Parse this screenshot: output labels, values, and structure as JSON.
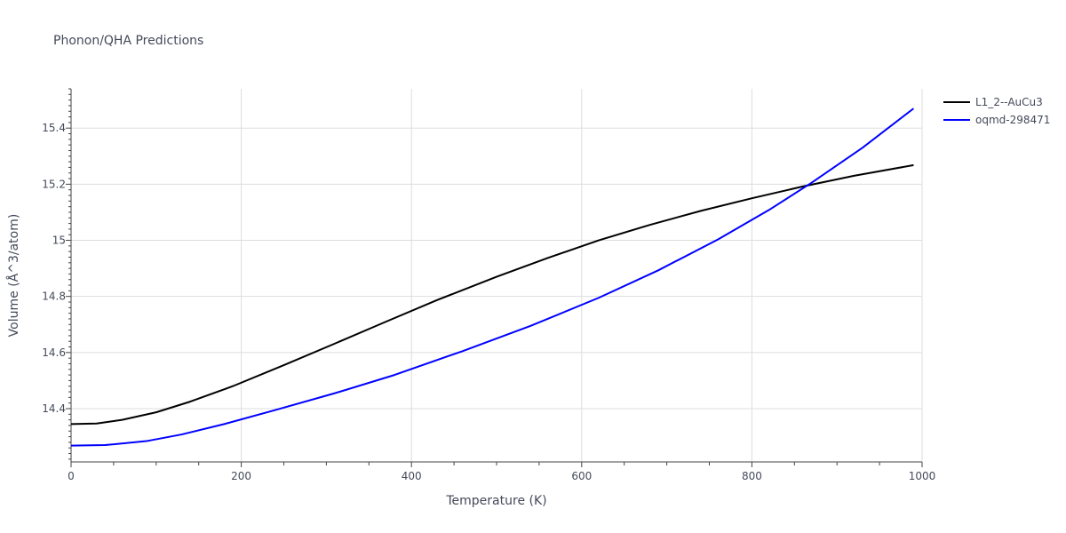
{
  "chart_data": {
    "type": "line",
    "title": "Phonon/QHA Predictions",
    "xlabel": "Temperature (K)",
    "ylabel": "Volume (Å^3/atom)",
    "xlim": [
      0,
      1000
    ],
    "ylim": [
      14.21,
      15.54
    ],
    "x_ticks": [
      0,
      200,
      400,
      600,
      800,
      1000
    ],
    "y_ticks": [
      14.4,
      14.6,
      14.8,
      15,
      15.2,
      15.4
    ],
    "x_tick_labels": [
      "0",
      "200",
      "400",
      "600",
      "800",
      "1000"
    ],
    "y_tick_labels": [
      "14.4",
      "14.6",
      "14.8",
      "15",
      "15.2",
      "15.4"
    ],
    "grid": true,
    "legend_position": "top-right",
    "series": [
      {
        "name": "L1_2--AuCu3",
        "color": "#000000",
        "x": [
          0,
          30,
          60,
          100,
          140,
          190,
          250,
          310,
          370,
          430,
          500,
          560,
          620,
          680,
          740,
          800,
          860,
          920,
          990
        ],
        "y": [
          14.345,
          14.347,
          14.36,
          14.387,
          14.425,
          14.48,
          14.555,
          14.632,
          14.71,
          14.787,
          14.87,
          14.937,
          15.0,
          15.055,
          15.105,
          15.15,
          15.192,
          15.23,
          15.268
        ]
      },
      {
        "name": "oqmd-298471",
        "color": "#0000ff",
        "x": [
          0,
          40,
          90,
          130,
          180,
          240,
          310,
          380,
          460,
          540,
          620,
          690,
          760,
          820,
          870,
          930,
          990
        ],
        "y": [
          14.268,
          14.27,
          14.285,
          14.308,
          14.345,
          14.395,
          14.455,
          14.52,
          14.605,
          14.695,
          14.795,
          14.893,
          15.003,
          15.108,
          15.205,
          15.33,
          15.47
        ]
      }
    ]
  }
}
